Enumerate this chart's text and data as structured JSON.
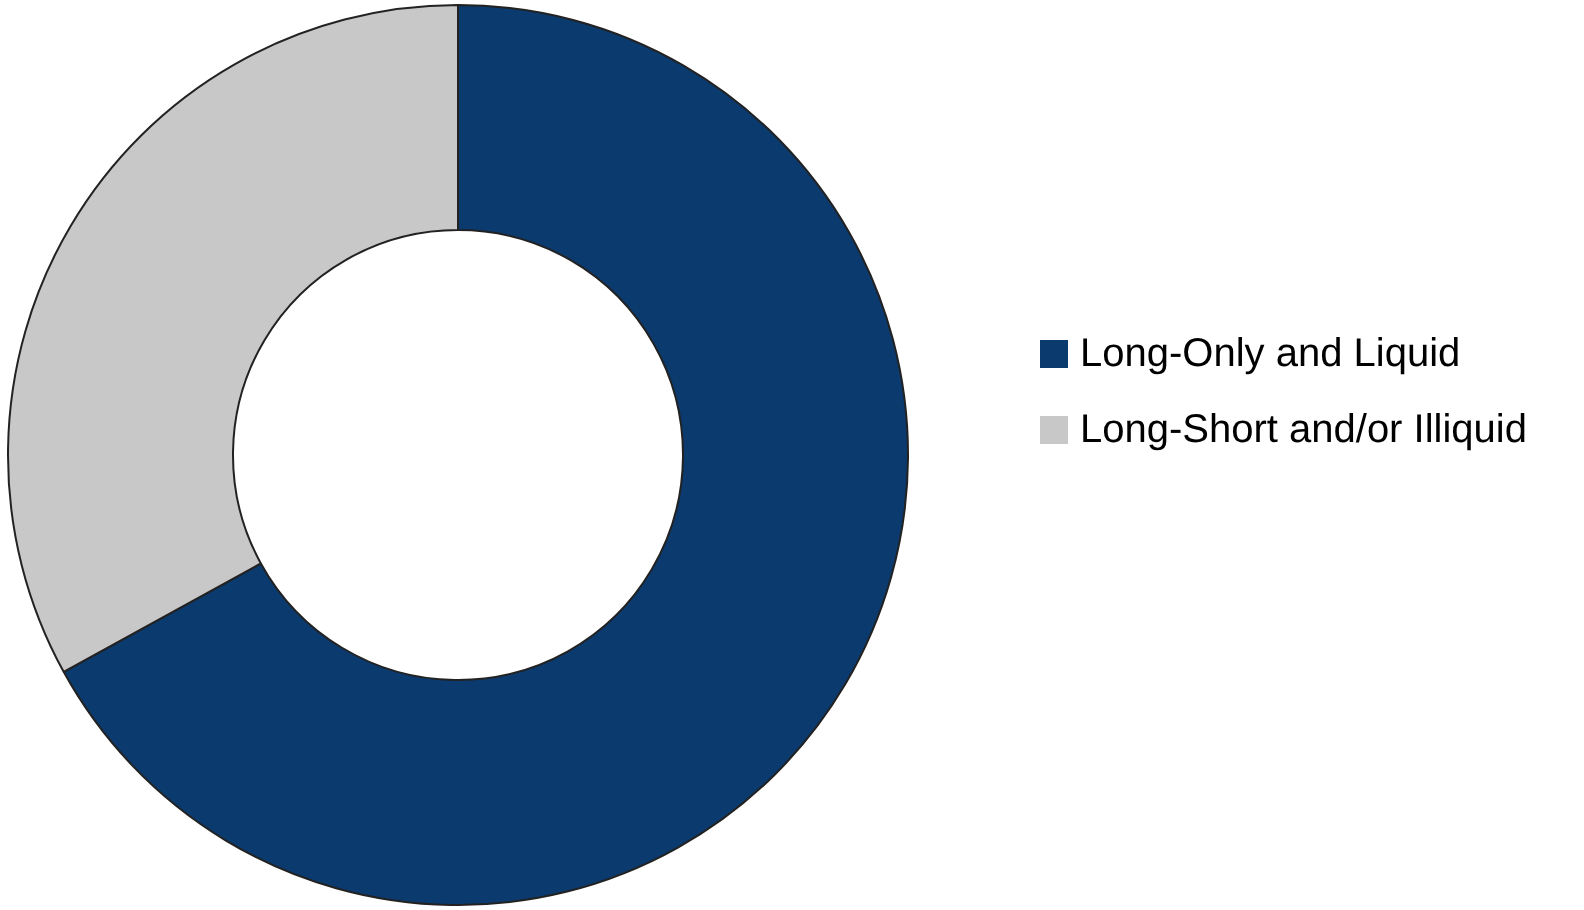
{
  "chart_data": {
    "type": "donut",
    "categories": [
      "Long-Only and Liquid",
      "Long-Short and/or Illiquid"
    ],
    "values": [
      67,
      33
    ],
    "colors": [
      "#0b3a6e",
      "#c8c8c8"
    ],
    "legend": "right"
  }
}
